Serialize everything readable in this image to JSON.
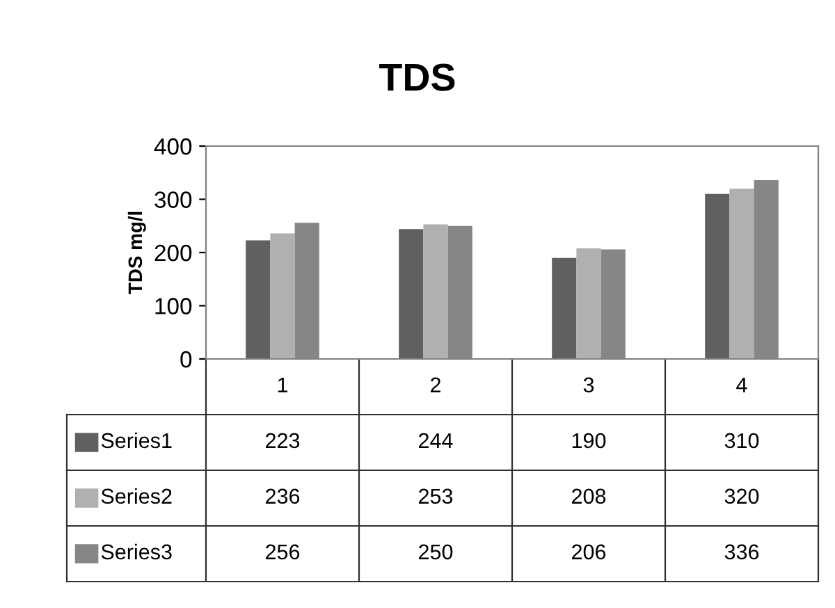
{
  "chart_data": {
    "type": "bar",
    "title": "TDS",
    "ylabel": "TDS mg/l",
    "categories": [
      "1",
      "2",
      "3",
      "4"
    ],
    "series": [
      {
        "name": "Series1",
        "color": "#606060",
        "values": [
          223,
          244,
          190,
          310
        ]
      },
      {
        "name": "Series2",
        "color": "#b0b0b0",
        "values": [
          236,
          253,
          208,
          320
        ]
      },
      {
        "name": "Series3",
        "color": "#868686",
        "values": [
          256,
          250,
          206,
          336
        ]
      }
    ],
    "ylim": [
      0,
      400
    ],
    "yticks": [
      0,
      100,
      200,
      300,
      400
    ],
    "grid": false,
    "data_labels": true,
    "legend": "left"
  }
}
